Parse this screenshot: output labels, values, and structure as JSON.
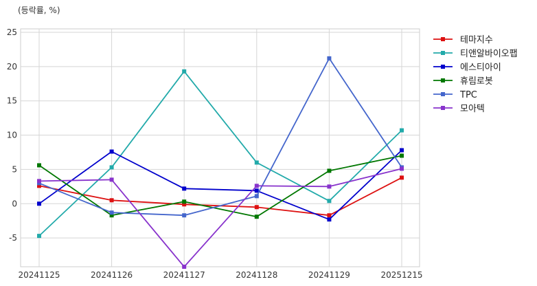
{
  "chart_data": {
    "type": "line",
    "unit_label": "(등락률, %)",
    "categories": [
      "20241125",
      "20241126",
      "20241127",
      "20241128",
      "20241129",
      "20251215"
    ],
    "ylim": [
      -9.2,
      25.5
    ],
    "yticks": [
      -5,
      0,
      5,
      10,
      15,
      20,
      25
    ],
    "grid": true,
    "legend_position": "right",
    "series": [
      {
        "name": "테마지수",
        "color": "#dd1111",
        "values": [
          2.6,
          0.5,
          -0.1,
          -0.5,
          -1.7,
          3.8
        ]
      },
      {
        "name": "티앤알바이오팹",
        "color": "#22aaaa",
        "values": [
          -4.7,
          5.3,
          19.3,
          6.0,
          0.4,
          10.7
        ]
      },
      {
        "name": "에스티아이",
        "color": "#0000cc",
        "values": [
          0.0,
          7.6,
          2.2,
          1.9,
          -2.3,
          7.8
        ]
      },
      {
        "name": "휴림로봇",
        "color": "#007700",
        "values": [
          5.6,
          -1.7,
          0.3,
          -1.9,
          4.8,
          7.0
        ]
      },
      {
        "name": "TPC",
        "color": "#4466cc",
        "values": [
          3.0,
          -1.3,
          -1.7,
          1.1,
          21.2,
          5.3
        ]
      },
      {
        "name": "모아텍",
        "color": "#8833cc",
        "values": [
          3.3,
          3.5,
          -9.2,
          2.6,
          2.5,
          5.1
        ]
      }
    ]
  }
}
